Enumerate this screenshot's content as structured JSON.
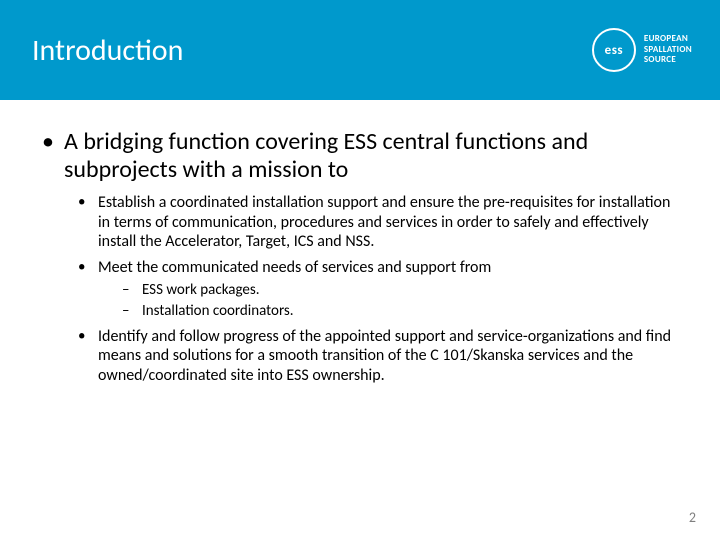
{
  "header": {
    "title": "Introduction",
    "logo_abbrev": "ess",
    "logo_line1": "EUROPEAN",
    "logo_line2": "SPALLATION",
    "logo_line3": "SOURCE"
  },
  "bullets": {
    "main": "A bridging function covering ESS central functions and subprojects with a mission to",
    "sub1": "Establish a coordinated installation support and ensure the pre-requisites for installation in terms of communication, procedures and services in order to safely and effectively install the Accelerator, Target, ICS and NSS.",
    "sub2": "Meet the communicated needs of services and support from",
    "sub2a": "ESS work packages.",
    "sub2b": "Installation coordinators.",
    "sub3": "Identify and follow progress of the appointed support and service-organizations and find means and solutions for a smooth transition of the C 101/Skanska services and the owned/coordinated site into ESS ownership."
  },
  "page_number": "2",
  "colors": {
    "header_bg": "#0099cc",
    "header_text": "#ffffff",
    "body_text": "#000000",
    "page_num": "#7f7f7f",
    "background": "#ffffff"
  }
}
